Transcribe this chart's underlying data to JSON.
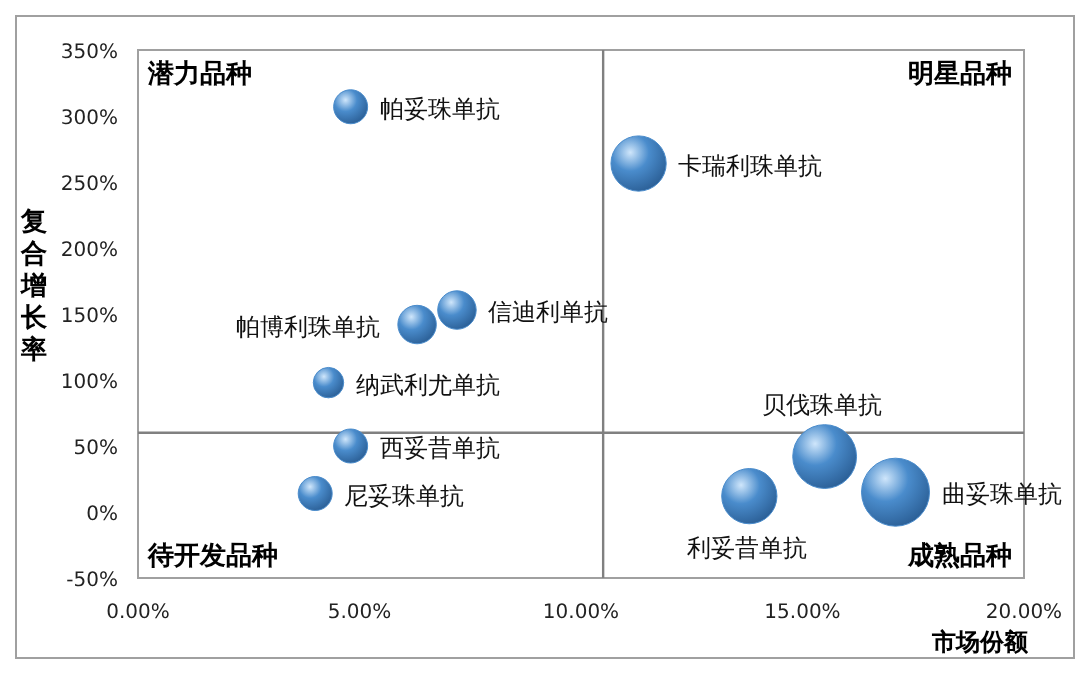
{
  "chart_data": {
    "type": "bubble",
    "xlabel": "市场份额",
    "ylabel": "复合增长率",
    "x": [
      4.8,
      11.3,
      6.3,
      7.2,
      4.3,
      4.8,
      4.0,
      13.8,
      15.5,
      17.1
    ],
    "values": [
      307,
      264,
      142,
      153,
      98,
      50,
      14,
      12,
      42,
      15
    ],
    "sizes": [
      0.25,
      0.66,
      0.32,
      0.32,
      0.2,
      0.25,
      0.25,
      0.66,
      0.88,
      1
    ],
    "color": "#4a8ccc",
    "xlim": [
      0,
      20
    ],
    "ylim": [
      -50,
      350
    ],
    "xticks": [
      {
        "value": 0,
        "label": "0.00%"
      },
      {
        "value": 5,
        "label": "5.00%"
      },
      {
        "value": 10,
        "label": "10.00%"
      },
      {
        "value": 15,
        "label": "15.00%"
      },
      {
        "value": 20,
        "label": "20.00%"
      }
    ],
    "yticks": [
      {
        "value": -50,
        "label": "-50%"
      },
      {
        "value": 0,
        "label": "0%"
      },
      {
        "value": 50,
        "label": "50%"
      },
      {
        "value": 100,
        "label": "100%"
      },
      {
        "value": 150,
        "label": "150%"
      },
      {
        "value": 200,
        "label": "200%"
      },
      {
        "value": 250,
        "label": "250%"
      },
      {
        "value": 300,
        "label": "300%"
      },
      {
        "value": 350,
        "label": "350%"
      }
    ],
    "ref_lines": [
      {
        "axis": "x",
        "value": 10.5,
        "label": null,
        "color": "#808080"
      },
      {
        "axis": "y",
        "value": 60,
        "label": null,
        "color": "#808080"
      }
    ],
    "annotations": [
      "潜力品种",
      "明星品种",
      "待开发品种",
      "成熟品种",
      {
        "text": "帕妥珠单抗",
        "x": 4.8,
        "y": 307
      },
      {
        "text": "卡瑞利珠单抗",
        "x": 11.3,
        "y": 264
      },
      {
        "text": "帕博利珠单抗",
        "x": 6.3,
        "y": 142
      },
      {
        "text": "信迪利单抗",
        "x": 7.2,
        "y": 153
      },
      {
        "text": "纳武利尤单抗",
        "x": 4.3,
        "y": 98
      },
      {
        "text": "西妥昔单抗",
        "x": 4.8,
        "y": 50
      },
      {
        "text": "尼妥珠单抗",
        "x": 4.0,
        "y": 14
      },
      {
        "text": "利妥昔单抗",
        "x": 13.8,
        "y": 12
      },
      {
        "text": "贝伐珠单抗",
        "x": 15.5,
        "y": 42
      },
      {
        "text": "曲妥珠单抗",
        "x": 17.1,
        "y": 15
      }
    ],
    "grid": false
  }
}
